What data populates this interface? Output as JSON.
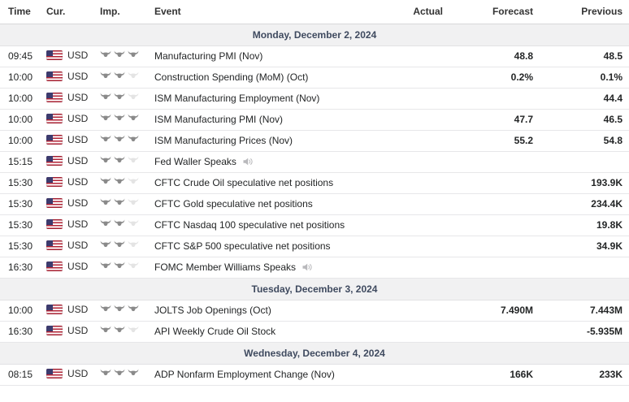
{
  "table": {
    "columns": [
      {
        "label": "Time"
      },
      {
        "label": "Cur."
      },
      {
        "label": "Imp."
      },
      {
        "label": "Event"
      },
      {
        "label": "Actual"
      },
      {
        "label": "Forecast"
      },
      {
        "label": "Previous"
      }
    ],
    "rows": [
      {
        "type": "date",
        "label": "Monday, December 2, 2024"
      },
      {
        "type": "event",
        "time": "09:45",
        "currency": "USD",
        "flag": "us-flag-icon",
        "importance": 3,
        "max_importance": 3,
        "event": "Manufacturing PMI (Nov)",
        "actual": "",
        "forecast": "48.8",
        "previous": "48.5",
        "speech": false
      },
      {
        "type": "event",
        "time": "10:00",
        "currency": "USD",
        "flag": "us-flag-icon",
        "importance": 2,
        "max_importance": 3,
        "event": "Construction Spending (MoM) (Oct)",
        "actual": "",
        "forecast": "0.2%",
        "previous": "0.1%",
        "speech": false
      },
      {
        "type": "event",
        "time": "10:00",
        "currency": "USD",
        "flag": "us-flag-icon",
        "importance": 2,
        "max_importance": 3,
        "event": "ISM Manufacturing Employment (Nov)",
        "actual": "",
        "forecast": "",
        "previous": "44.4",
        "speech": false
      },
      {
        "type": "event",
        "time": "10:00",
        "currency": "USD",
        "flag": "us-flag-icon",
        "importance": 3,
        "max_importance": 3,
        "event": "ISM Manufacturing PMI (Nov)",
        "actual": "",
        "forecast": "47.7",
        "previous": "46.5",
        "speech": false
      },
      {
        "type": "event",
        "time": "10:00",
        "currency": "USD",
        "flag": "us-flag-icon",
        "importance": 3,
        "max_importance": 3,
        "event": "ISM Manufacturing Prices (Nov)",
        "actual": "",
        "forecast": "55.2",
        "previous": "54.8",
        "speech": false
      },
      {
        "type": "event",
        "time": "15:15",
        "currency": "USD",
        "flag": "us-flag-icon",
        "importance": 2,
        "max_importance": 3,
        "event": "Fed Waller Speaks",
        "actual": "",
        "forecast": "",
        "previous": "",
        "speech": true
      },
      {
        "type": "event",
        "time": "15:30",
        "currency": "USD",
        "flag": "us-flag-icon",
        "importance": 2,
        "max_importance": 3,
        "event": "CFTC Crude Oil speculative net positions",
        "actual": "",
        "forecast": "",
        "previous": "193.9K",
        "speech": false
      },
      {
        "type": "event",
        "time": "15:30",
        "currency": "USD",
        "flag": "us-flag-icon",
        "importance": 2,
        "max_importance": 3,
        "event": "CFTC Gold speculative net positions",
        "actual": "",
        "forecast": "",
        "previous": "234.4K",
        "speech": false
      },
      {
        "type": "event",
        "time": "15:30",
        "currency": "USD",
        "flag": "us-flag-icon",
        "importance": 2,
        "max_importance": 3,
        "event": "CFTC Nasdaq 100 speculative net positions",
        "actual": "",
        "forecast": "",
        "previous": "19.8K",
        "speech": false
      },
      {
        "type": "event",
        "time": "15:30",
        "currency": "USD",
        "flag": "us-flag-icon",
        "importance": 2,
        "max_importance": 3,
        "event": "CFTC S&P 500 speculative net positions",
        "actual": "",
        "forecast": "",
        "previous": "34.9K",
        "speech": false
      },
      {
        "type": "event",
        "time": "16:30",
        "currency": "USD",
        "flag": "us-flag-icon",
        "importance": 2,
        "max_importance": 3,
        "event": "FOMC Member Williams Speaks",
        "actual": "",
        "forecast": "",
        "previous": "",
        "speech": true
      },
      {
        "type": "date",
        "label": "Tuesday, December 3, 2024"
      },
      {
        "type": "event",
        "time": "10:00",
        "currency": "USD",
        "flag": "us-flag-icon",
        "importance": 3,
        "max_importance": 3,
        "event": "JOLTS Job Openings (Oct)",
        "actual": "",
        "forecast": "7.490M",
        "previous": "7.443M",
        "speech": false
      },
      {
        "type": "event",
        "time": "16:30",
        "currency": "USD",
        "flag": "us-flag-icon",
        "importance": 2,
        "max_importance": 3,
        "event": "API Weekly Crude Oil Stock",
        "actual": "",
        "forecast": "",
        "previous": "-5.935M",
        "speech": false
      },
      {
        "type": "date",
        "label": "Wednesday, December 4, 2024"
      },
      {
        "type": "event",
        "time": "08:15",
        "currency": "USD",
        "flag": "us-flag-icon",
        "importance": 3,
        "max_importance": 3,
        "event": "ADP Nonfarm Employment Change (Nov)",
        "actual": "",
        "forecast": "166K",
        "previous": "233K",
        "speech": false
      }
    ]
  },
  "icons": {
    "importance": "bull-icon",
    "speech": "speaker-icon",
    "flag": "us-flag-icon"
  },
  "colors": {
    "importance_active": "#8a8a8a",
    "importance_inactive": "#e4e4e4",
    "date_row_bg": "#f1f1f2",
    "date_row_text": "#3f4a5f",
    "row_border": "#e7e7e9",
    "header_text": "#333333",
    "flag_red": "#b22234",
    "flag_blue": "#3c3b6e"
  }
}
